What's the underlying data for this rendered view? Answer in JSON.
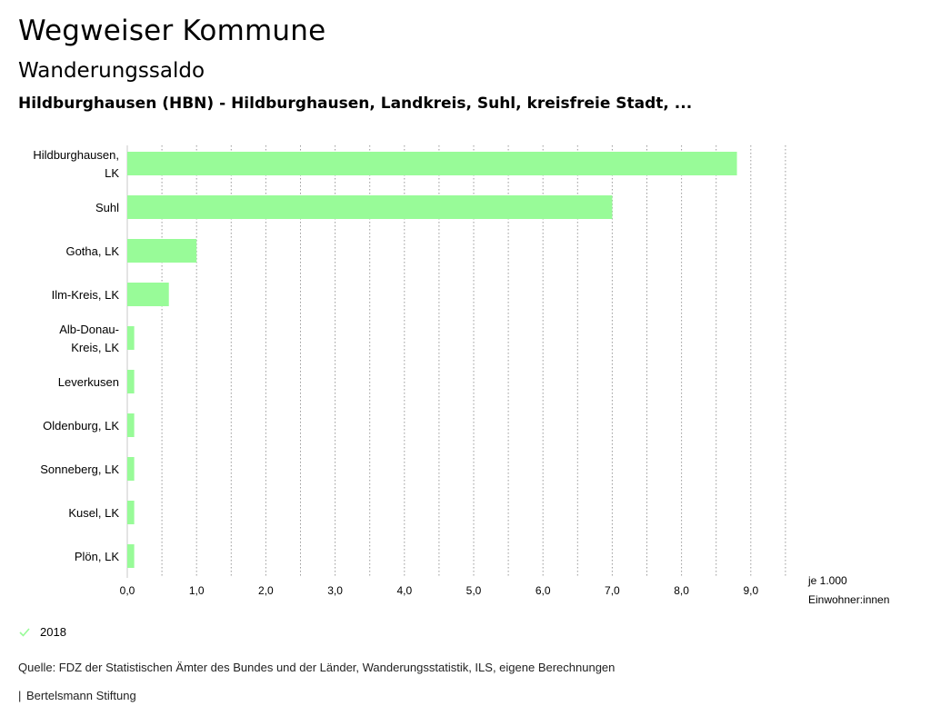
{
  "header": {
    "title": "Wegweiser Kommune",
    "subtitle": "Wanderungssaldo",
    "region": "Hildburghausen (HBN) - Hildburghausen, Landkreis, Suhl, kreisfreie Stadt, ..."
  },
  "chart_data": {
    "type": "bar",
    "orientation": "horizontal",
    "categories": [
      [
        "Hildburghausen,",
        "LK"
      ],
      [
        "Suhl"
      ],
      [
        "Gotha, LK"
      ],
      [
        "Ilm-Kreis, LK"
      ],
      [
        "Alb-Donau-",
        "Kreis, LK"
      ],
      [
        "Leverkusen"
      ],
      [
        "Oldenburg, LK"
      ],
      [
        "Sonneberg, LK"
      ],
      [
        "Kusel, LK"
      ],
      [
        "Plön, LK"
      ]
    ],
    "series": [
      {
        "name": "2018",
        "values": [
          8.8,
          7.0,
          1.0,
          0.6,
          0.1,
          0.1,
          0.1,
          0.1,
          0.1,
          0.1
        ]
      }
    ],
    "xlim": [
      0,
      9.5
    ],
    "xticks": [
      0,
      1,
      2,
      3,
      4,
      5,
      6,
      7,
      8,
      9
    ],
    "xtick_labels": [
      "0,0",
      "1,0",
      "2,0",
      "3,0",
      "4,0",
      "5,0",
      "6,0",
      "7,0",
      "8,0",
      "9,0"
    ],
    "xlabel": [
      "je 1.000",
      "Einwohner:innen"
    ],
    "grid": "vertical-dotted",
    "bar_color": "#98fb98"
  },
  "legend": {
    "icon": "check-icon",
    "label": "2018",
    "color": "#98fb98"
  },
  "footer": {
    "source": "Quelle: FDZ der Statistischen Ämter des Bundes und der Länder, Wanderungsstatistik, ILS, eigene Berechnungen",
    "publisher": "Bertelsmann Stiftung",
    "publisher_prefix": "|"
  }
}
